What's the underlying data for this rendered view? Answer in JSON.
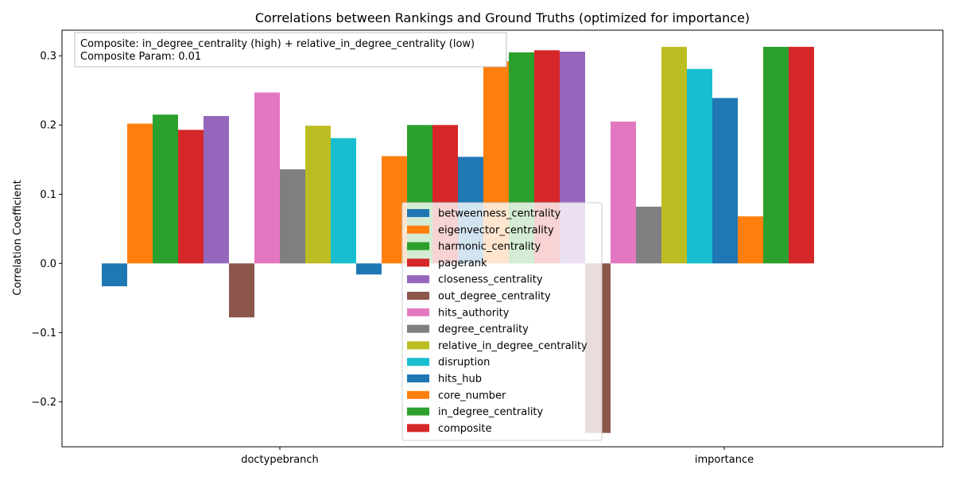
{
  "chart_data": {
    "type": "bar",
    "title": "Correlations between Rankings and Ground Truths (optimized for importance)",
    "xlabel": "",
    "ylabel": "Correlation Coefficient",
    "categories": [
      "doctypebranch",
      "importance"
    ],
    "ylim": [
      -0.265,
      0.337
    ],
    "yticks": [
      -0.2,
      -0.1,
      0.0,
      0.1,
      0.2,
      0.3
    ],
    "ytick_labels": [
      "−0.2",
      "−0.1",
      "0.0",
      "0.1",
      "0.2",
      "0.3"
    ],
    "grid": false,
    "legend_placement": "lower-center",
    "annotation": {
      "line1": "Composite: in_degree_centrality (high) + relative_in_degree_centrality (low)",
      "line2": "Composite Param: 0.01"
    },
    "series": [
      {
        "name": "betweenness_centrality",
        "color": "#1f77b4",
        "values": [
          -0.033,
          -0.016
        ]
      },
      {
        "name": "eigenvector_centrality",
        "color": "#ff7f0e",
        "values": [
          0.202,
          0.155
        ]
      },
      {
        "name": "harmonic_centrality",
        "color": "#2ca02c",
        "values": [
          0.215,
          0.2
        ]
      },
      {
        "name": "pagerank",
        "color": "#d62728",
        "values": [
          0.193,
          0.2
        ]
      },
      {
        "name": "closeness_centrality",
        "color": "#9467bd",
        "values": [
          0.213,
          0.0
        ]
      },
      {
        "name": "out_degree_centrality",
        "color": "#8c564b",
        "values": [
          -0.078,
          0.0
        ]
      },
      {
        "name": "hits_authority",
        "color": "#e377c2",
        "values": [
          0.247,
          0.0
        ]
      },
      {
        "name": "degree_centrality",
        "color": "#7f7f7f",
        "values": [
          0.136,
          0.0
        ]
      },
      {
        "name": "relative_in_degree_centrality",
        "color": "#bcbd22",
        "values": [
          0.199,
          0.0
        ]
      },
      {
        "name": "disruption",
        "color": "#17becf",
        "values": [
          0.181,
          0.154
        ]
      },
      {
        "name": "hits_hub",
        "color": "#1f77b4",
        "values": [
          0.0,
          0.292
        ]
      },
      {
        "name": "core_number",
        "color": "#ff7f0e",
        "values": [
          0.0,
          0.305
        ]
      },
      {
        "name": "in_degree_centrality",
        "color": "#2ca02c",
        "values": [
          0.0,
          0.308
        ]
      },
      {
        "name": "composite",
        "color": "#d62728",
        "values": [
          0.0,
          0.306
        ]
      }
    ],
    "bars": [
      {
        "color": "#1f77b4",
        "value": -0.033
      },
      {
        "color": "#ff7f0e",
        "value": 0.202
      },
      {
        "color": "#2ca02c",
        "value": 0.215
      },
      {
        "color": "#d62728",
        "value": 0.193
      },
      {
        "color": "#9467bd",
        "value": 0.213
      },
      {
        "color": "#8c564b",
        "value": -0.078
      },
      {
        "color": "#e377c2",
        "value": 0.247
      },
      {
        "color": "#7f7f7f",
        "value": 0.136
      },
      {
        "color": "#bcbd22",
        "value": 0.199
      },
      {
        "color": "#17becf",
        "value": 0.181
      },
      {
        "color": "#1f77b4",
        "value": -0.016
      },
      {
        "color": "#ff7f0e",
        "value": 0.155
      },
      {
        "color": "#2ca02c",
        "value": 0.2
      },
      {
        "color": "#d62728",
        "value": 0.2
      },
      {
        "color": "#1f77b4",
        "value": 0.154
      },
      {
        "color": "#ff7f0e",
        "value": 0.292
      },
      {
        "color": "#2ca02c",
        "value": 0.305
      },
      {
        "color": "#d62728",
        "value": 0.308
      },
      {
        "color": "#9467bd",
        "value": 0.306
      },
      {
        "color": "#8c564b",
        "value": -0.245
      },
      {
        "color": "#e377c2",
        "value": 0.205
      },
      {
        "color": "#7f7f7f",
        "value": 0.082
      },
      {
        "color": "#bcbd22",
        "value": 0.313
      },
      {
        "color": "#17becf",
        "value": 0.281
      },
      {
        "color": "#1f77b4",
        "value": 0.239
      },
      {
        "color": "#ff7f0e",
        "value": 0.068
      },
      {
        "color": "#2ca02c",
        "value": 0.313
      },
      {
        "color": "#d62728",
        "value": 0.313
      }
    ]
  }
}
